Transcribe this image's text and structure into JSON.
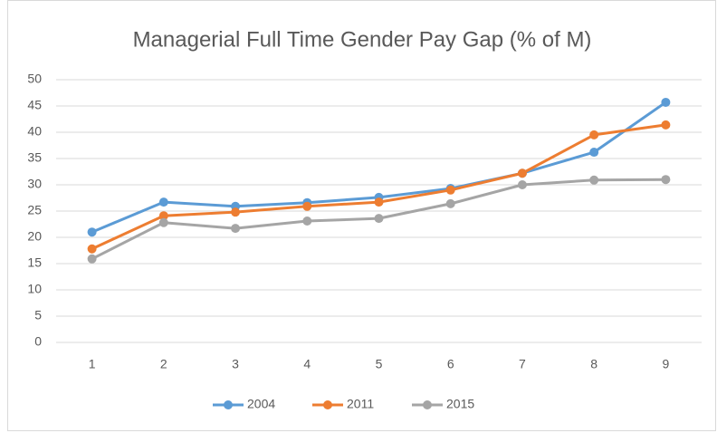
{
  "chart_data": {
    "type": "line",
    "title": "Managerial Full Time Gender Pay Gap (% of M)",
    "categories": [
      "1",
      "2",
      "3",
      "4",
      "5",
      "6",
      "7",
      "8",
      "9"
    ],
    "series": [
      {
        "name": "2004",
        "color": "#5b9bd5",
        "values": [
          21,
          26.7,
          25.9,
          26.6,
          27.6,
          29.3,
          32.2,
          36.2,
          45.7
        ]
      },
      {
        "name": "2011",
        "color": "#ed7d31",
        "values": [
          17.8,
          24.1,
          24.8,
          25.9,
          26.7,
          29,
          32.2,
          39.5,
          41.4
        ]
      },
      {
        "name": "2015",
        "color": "#a5a5a5",
        "values": [
          15.9,
          22.8,
          21.7,
          23.1,
          23.6,
          26.4,
          30,
          30.9,
          31
        ]
      }
    ],
    "ylim": [
      0,
      50
    ],
    "yticks": [
      0,
      5,
      10,
      15,
      20,
      25,
      30,
      35,
      40,
      45,
      50
    ],
    "grid": true,
    "legend": "bottom"
  }
}
